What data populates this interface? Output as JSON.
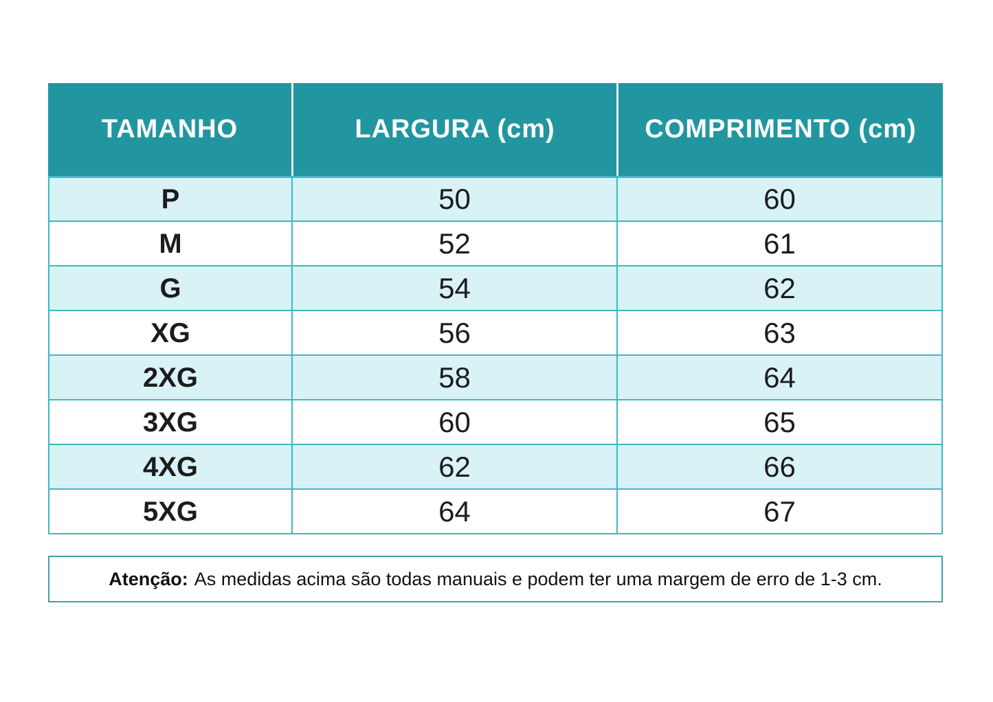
{
  "table": {
    "headers": [
      "TAMANHO",
      "LARGURA (cm)",
      "COMPRIMENTO (cm)"
    ],
    "rows": [
      {
        "size": "P",
        "largura": "50",
        "comprimento": "60"
      },
      {
        "size": "M",
        "largura": "52",
        "comprimento": "61"
      },
      {
        "size": "G",
        "largura": "54",
        "comprimento": "62"
      },
      {
        "size": "XG",
        "largura": "56",
        "comprimento": "63"
      },
      {
        "size": "2XG",
        "largura": "58",
        "comprimento": "64"
      },
      {
        "size": "3XG",
        "largura": "60",
        "comprimento": "65"
      },
      {
        "size": "4XG",
        "largura": "62",
        "comprimento": "66"
      },
      {
        "size": "5XG",
        "largura": "64",
        "comprimento": "67"
      }
    ]
  },
  "note": {
    "label": "Atenção:",
    "text": "As medidas acima são todas manuais e podem ter uma margem de erro de 1-3 cm."
  },
  "colors": {
    "header_bg": "#2196A0",
    "header_text": "#FFFFFF",
    "row_alt_bg": "#D9F2F6",
    "row_bg": "#FFFFFF",
    "grid_line": "#3CB8C4",
    "header_separator": "#E7F6F8",
    "note_border": "#43A0AB",
    "body_text": "#1C1C1C"
  },
  "chart_data": {
    "type": "table",
    "title": "Tabela de medidas (size chart)",
    "columns": [
      "TAMANHO",
      "LARGURA (cm)",
      "COMPRIMENTO (cm)"
    ],
    "rows": [
      [
        "P",
        50,
        60
      ],
      [
        "M",
        52,
        61
      ],
      [
        "G",
        54,
        62
      ],
      [
        "XG",
        56,
        63
      ],
      [
        "2XG",
        58,
        64
      ],
      [
        "3XG",
        60,
        65
      ],
      [
        "4XG",
        62,
        66
      ],
      [
        "5XG",
        64,
        67
      ]
    ],
    "footnote": "Atenção: As medidas acima são todas manuais e podem ter uma margem de erro de 1-3 cm."
  }
}
